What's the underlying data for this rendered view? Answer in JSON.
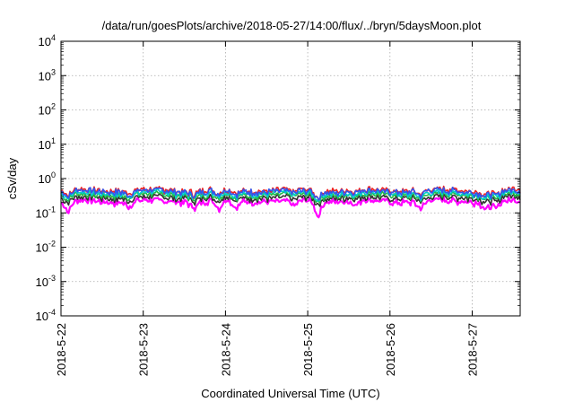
{
  "chart_data": {
    "type": "line",
    "title": "/data/run/goesPlots/archive/2018-05-27/14:00/flux/../bryn/5daysMoon.plot",
    "xlabel": "Coordinated Universal Time (UTC)",
    "ylabel": "cSv/day",
    "yscale": "log",
    "ylim": [
      0.0001,
      10000
    ],
    "xlim": [
      "2018-05-22 00:00",
      "2018-05-27 14:00"
    ],
    "grid": true,
    "legend": "none",
    "x_ticks": [
      "2018-5-22",
      "2018-5-23",
      "2018-5-24",
      "2018-5-25",
      "2018-5-26",
      "2018-5-27"
    ],
    "y_ticks": [
      {
        "base": "10",
        "exp": "4"
      },
      {
        "base": "10",
        "exp": "3"
      },
      {
        "base": "10",
        "exp": "2"
      },
      {
        "base": "10",
        "exp": "1"
      },
      {
        "base": "10",
        "exp": "0"
      },
      {
        "base": "10",
        "exp": "-1"
      },
      {
        "base": "10",
        "exp": "-2"
      },
      {
        "base": "10",
        "exp": "-3"
      },
      {
        "base": "10",
        "exp": "-4"
      }
    ],
    "series": [
      {
        "color": "#ff00ff",
        "base": 0.22
      },
      {
        "color": "#333333",
        "base": 0.28
      },
      {
        "color": "#22bb44",
        "base": 0.34
      },
      {
        "color": "#00cccc",
        "base": 0.38
      },
      {
        "color": "#ee2222",
        "base": 0.46
      },
      {
        "color": "#3355ee",
        "base": 0.43
      }
    ],
    "dips": [
      {
        "x": "2018-05-22 02:00",
        "factor": 0.45
      },
      {
        "x": "2018-05-22 20:00",
        "factor": 0.7
      },
      {
        "x": "2018-05-23 15:00",
        "factor": 0.7
      },
      {
        "x": "2018-05-23 22:00",
        "factor": 0.55
      },
      {
        "x": "2018-05-24 03:00",
        "factor": 0.6
      },
      {
        "x": "2018-05-24 20:00",
        "factor": 0.7
      },
      {
        "x": "2018-05-25 03:00",
        "factor": 0.35
      },
      {
        "x": "2018-05-25 14:00",
        "factor": 0.75
      },
      {
        "x": "2018-05-26 09:00",
        "factor": 0.6
      },
      {
        "x": "2018-05-27 04:00",
        "factor": 0.55
      },
      {
        "x": "2018-05-27 07:00",
        "factor": 0.55
      }
    ]
  }
}
